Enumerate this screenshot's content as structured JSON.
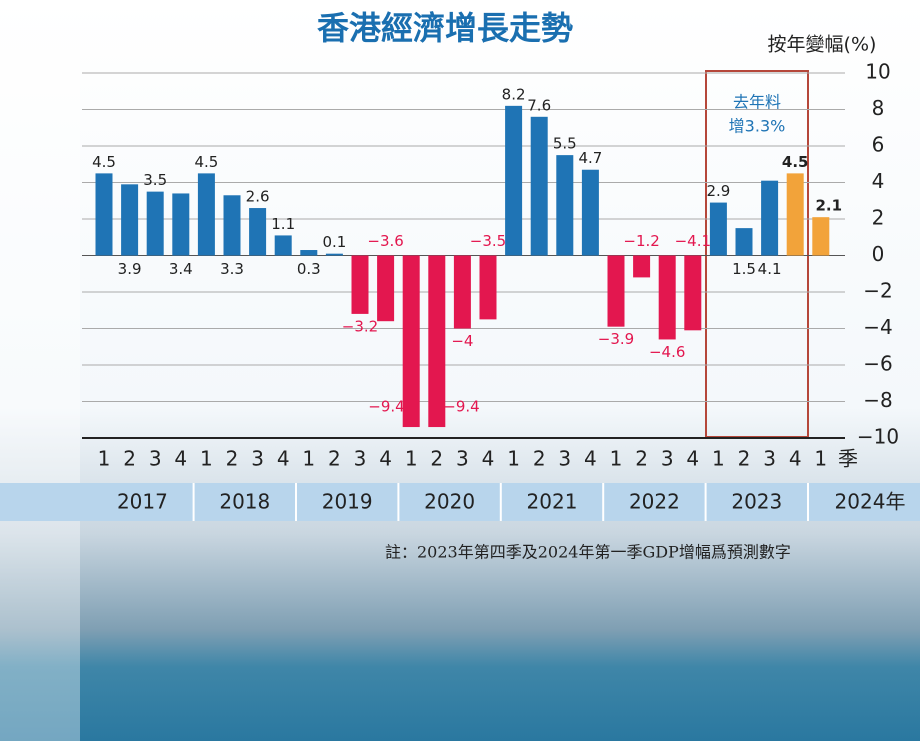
{
  "chart_data": {
    "type": "bar",
    "title": "香港經濟增長走勢",
    "y_axis_label": "按年變幅(%)",
    "x_unit": "季",
    "categories": [
      "1",
      "2",
      "3",
      "4",
      "1",
      "2",
      "3",
      "4",
      "1",
      "2",
      "3",
      "4",
      "1",
      "2",
      "3",
      "4",
      "1",
      "2",
      "3",
      "4",
      "1",
      "2",
      "3",
      "4",
      "1",
      "2",
      "3",
      "4",
      "1"
    ],
    "years": [
      "2017",
      "2018",
      "2019",
      "2020",
      "2021",
      "2022",
      "2023",
      "2024年"
    ],
    "values": [
      4.5,
      3.9,
      3.5,
      3.4,
      4.5,
      3.3,
      2.6,
      1.1,
      0.3,
      0.1,
      -3.2,
      -3.6,
      -9.4,
      -9.4,
      -4,
      -3.5,
      8.2,
      7.6,
      5.5,
      4.7,
      -3.9,
      -1.2,
      -4.6,
      -4.1,
      2.9,
      1.5,
      4.1,
      4.5,
      2.1
    ],
    "value_labels": [
      "4.5",
      "3.9",
      "3.5",
      "3.4",
      "4.5",
      "3.3",
      "2.6",
      "1.1",
      "0.3",
      "0.1",
      "−3.2",
      "−3.6",
      "−9.4",
      "−9.4",
      "−4",
      "−3.5",
      "8.2",
      "7.6",
      "5.5",
      "4.7",
      "−3.9",
      "−1.2",
      "−4.6",
      "−4.1",
      "2.9",
      "1.5",
      "4.1",
      "4.5",
      "2.1"
    ],
    "colors": [
      "#1f74b5",
      "#1f74b5",
      "#1f74b5",
      "#1f74b5",
      "#1f74b5",
      "#1f74b5",
      "#1f74b5",
      "#1f74b5",
      "#1f74b5",
      "#1f74b5",
      "#e3174f",
      "#e3174f",
      "#e3174f",
      "#e3174f",
      "#e3174f",
      "#e3174f",
      "#1f74b5",
      "#1f74b5",
      "#1f74b5",
      "#1f74b5",
      "#e3174f",
      "#e3174f",
      "#e3174f",
      "#e3174f",
      "#1f74b5",
      "#1f74b5",
      "#1f74b5",
      "#f2a33a",
      "#f2a33a"
    ],
    "ylim": [
      -10,
      10
    ],
    "yticks": [
      {
        "value": -10,
        "label": "−10"
      },
      {
        "value": -8,
        "label": "−8"
      },
      {
        "value": -6,
        "label": "−6"
      },
      {
        "value": -4,
        "label": "−4"
      },
      {
        "value": -2,
        "label": "−2"
      },
      0,
      2,
      4,
      6,
      8,
      10
    ],
    "grid": true,
    "annotation": [
      "去年料",
      "增3.3%"
    ],
    "note": "註：2023年第四季及2024年第一季GDP增幅爲預測數字"
  }
}
